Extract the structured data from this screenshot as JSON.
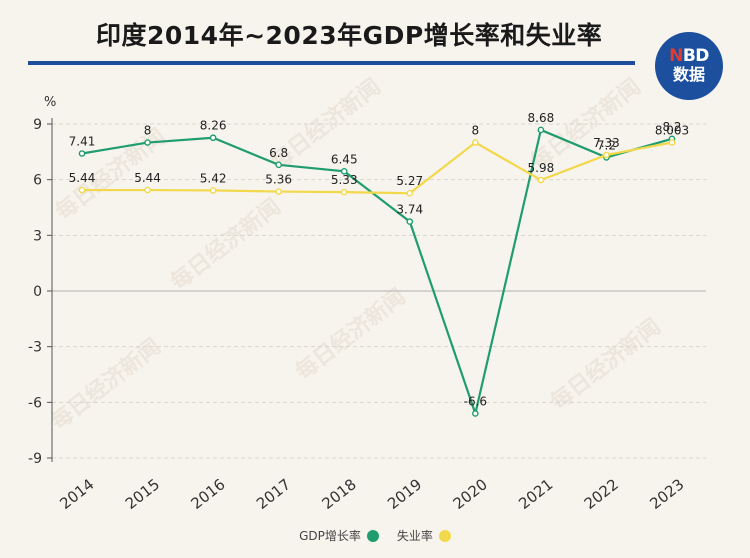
{
  "header": {
    "title": "印度2014年~2023年GDP增长率和失业率",
    "logo_line1_accent": "N",
    "logo_line1_rest": "BD",
    "logo_line2": "数据"
  },
  "chart_data": {
    "type": "line",
    "title": "印度2014年~2023年GDP增长率和失业率",
    "ylabel": "%",
    "xlabel": "",
    "ylim": [
      -9,
      9
    ],
    "yticks": [
      9,
      6,
      3,
      0,
      -3,
      -6,
      -9
    ],
    "grid": true,
    "legend_position": "bottom",
    "categories": [
      "2014",
      "2015",
      "2016",
      "2017",
      "2018",
      "2019",
      "2020",
      "2021",
      "2022",
      "2023"
    ],
    "series": [
      {
        "name": "GDP增长率",
        "color": "#1f9d6e",
        "values": [
          7.41,
          8,
          8.26,
          6.8,
          6.45,
          3.74,
          -6.6,
          8.68,
          7.2,
          8.2
        ],
        "labels": [
          "7.41",
          "8",
          "8.26",
          "6.8",
          "6.45",
          "3.74",
          "-6.6",
          "8.68",
          "7.2",
          "8.2"
        ]
      },
      {
        "name": "失业率",
        "color": "#f2d84a",
        "values": [
          5.44,
          5.44,
          5.42,
          5.36,
          5.33,
          5.27,
          8,
          5.98,
          7.33,
          8.003
        ],
        "labels": [
          "5.44",
          "5.44",
          "5.42",
          "5.36",
          "5.33",
          "5.27",
          "8",
          "5.98",
          "7.33",
          "8.003"
        ]
      }
    ]
  }
}
